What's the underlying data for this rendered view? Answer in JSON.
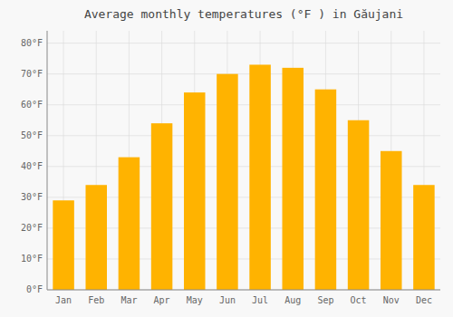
{
  "chart_data": {
    "type": "bar",
    "title": "Average monthly temperatures (°F ) in Găujani",
    "categories": [
      "Jan",
      "Feb",
      "Mar",
      "Apr",
      "May",
      "Jun",
      "Jul",
      "Aug",
      "Sep",
      "Oct",
      "Nov",
      "Dec"
    ],
    "values": [
      29,
      34,
      43,
      54,
      64,
      70,
      73,
      72,
      65,
      55,
      45,
      34
    ],
    "color": "#FFB300",
    "ylim": [
      0,
      84
    ],
    "yticks": [
      {
        "value": 0,
        "label": "0°F"
      },
      {
        "value": 10,
        "label": "10°F"
      },
      {
        "value": 20,
        "label": "20°F"
      },
      {
        "value": 30,
        "label": "30°F"
      },
      {
        "value": 40,
        "label": "40°F"
      },
      {
        "value": 50,
        "label": "50°F"
      },
      {
        "value": 60,
        "label": "60°F"
      },
      {
        "value": 70,
        "label": "70°F"
      },
      {
        "value": 80,
        "label": "80°F"
      }
    ],
    "grid": true
  }
}
